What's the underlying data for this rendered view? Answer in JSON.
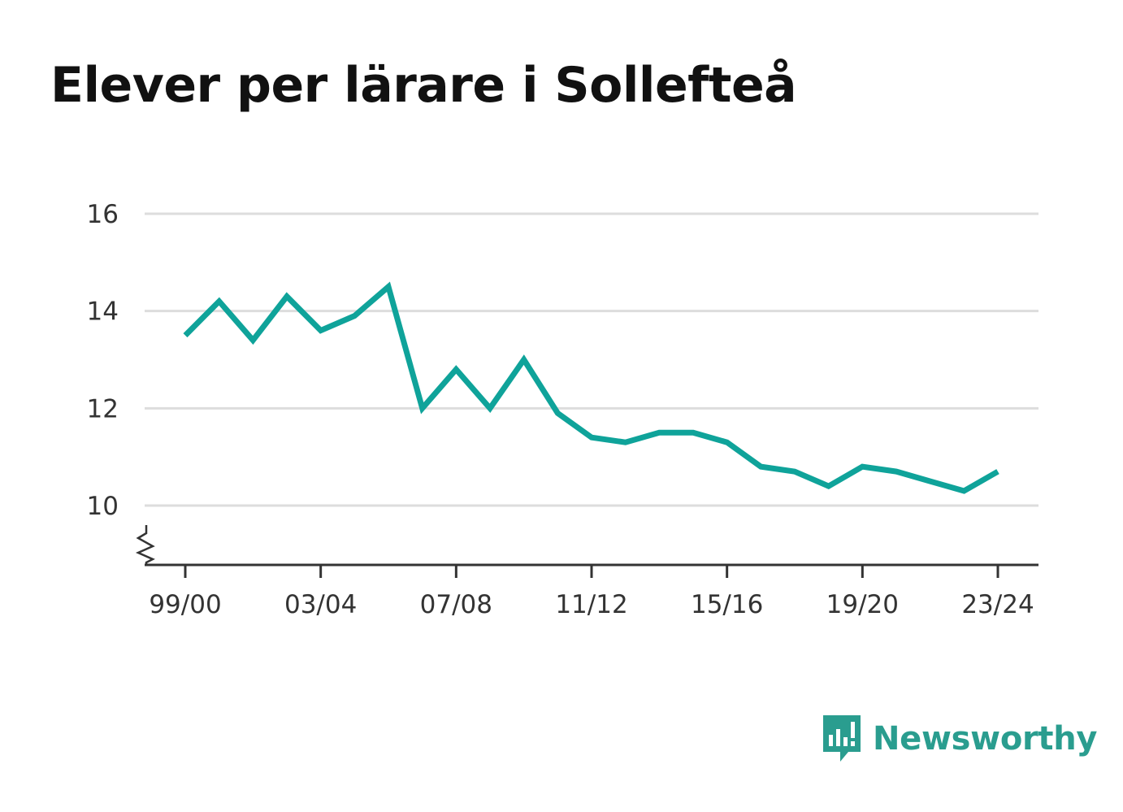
{
  "chart_data": {
    "type": "line",
    "title": "Elever per lärare i Sollefteå",
    "xlabel": "",
    "ylabel": "",
    "x_tick_labels": [
      "99/00",
      "03/04",
      "07/08",
      "11/12",
      "15/16",
      "19/20",
      "23/24"
    ],
    "y_ticks": [
      10,
      12,
      14,
      16
    ],
    "ylim": [
      8.8,
      16
    ],
    "grid": true,
    "legend": "none",
    "axis_break": true,
    "series": [
      {
        "color": "#0fa39a",
        "x": [
          "99/00",
          "00/01",
          "01/02",
          "02/03",
          "03/04",
          "04/05",
          "05/06",
          "06/07",
          "07/08",
          "08/09",
          "09/10",
          "10/11",
          "11/12",
          "12/13",
          "13/14",
          "14/15",
          "15/16",
          "16/17",
          "17/18",
          "18/19",
          "19/20",
          "20/21",
          "21/22",
          "22/23",
          "23/24"
        ],
        "values": [
          13.5,
          14.2,
          13.4,
          14.3,
          13.6,
          13.9,
          14.5,
          12.0,
          12.8,
          12.0,
          13.0,
          11.9,
          11.4,
          11.3,
          11.5,
          11.5,
          11.3,
          10.8,
          10.7,
          10.4,
          10.8,
          10.7,
          10.5,
          10.3,
          10.7
        ]
      }
    ]
  },
  "brand": {
    "name": "Newsworthy",
    "icon": "newsworthy-logo-icon",
    "color": "#2a9d8f"
  },
  "colors": {
    "line": "#0fa39a",
    "grid": "#dddddd",
    "axis": "#333333",
    "text": "#111111"
  }
}
